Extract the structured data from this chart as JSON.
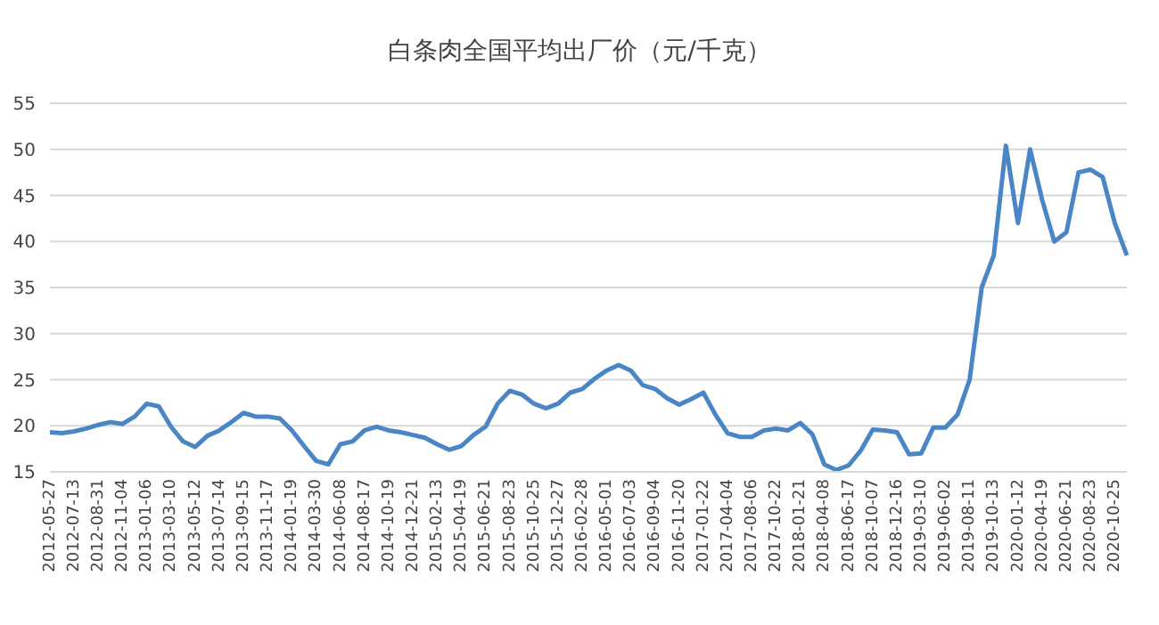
{
  "chart_data": {
    "type": "line",
    "title": "白条肉全国平均出厂价（元/千克）",
    "categories": [
      "2012-05-27",
      null,
      "2012-07-13",
      null,
      "2012-08-31",
      null,
      "2012-11-04",
      null,
      "2013-01-06",
      null,
      "2013-03-10",
      null,
      "2013-05-12",
      null,
      "2013-07-14",
      null,
      "2013-09-15",
      null,
      "2013-11-17",
      null,
      "2014-01-19",
      null,
      "2014-03-30",
      null,
      "2014-06-08",
      null,
      "2014-08-17",
      null,
      "2014-10-19",
      null,
      "2014-12-21",
      null,
      "2015-02-13",
      null,
      "2015-04-19",
      null,
      "2015-06-21",
      null,
      "2015-08-23",
      null,
      "2015-10-25",
      null,
      "2015-12-27",
      null,
      "2016-02-28",
      null,
      "2016-05-01",
      null,
      "2016-07-03",
      null,
      "2016-09-04",
      null,
      "2016-11-20",
      null,
      "2017-01-22",
      null,
      "2017-04-04",
      null,
      "2017-08-06",
      null,
      "2017-10-22",
      null,
      "2018-01-21",
      null,
      "2018-04-08",
      null,
      "2018-06-17",
      null,
      "2018-10-07",
      null,
      "2018-12-16",
      null,
      "2019-03-10",
      null,
      "2019-06-02",
      null,
      "2019-08-11",
      null,
      "2019-10-13",
      null,
      "2020-01-12",
      null,
      "2020-04-19",
      null,
      "2020-06-21",
      null,
      "2020-08-23",
      null,
      "2020-10-25",
      null
    ],
    "series": [
      {
        "color": "#4a86c5",
        "values": [
          19.3,
          19.2,
          19.4,
          19.7,
          20.1,
          20.4,
          20.2,
          21.0,
          22.4,
          22.1,
          19.9,
          18.3,
          17.7,
          18.9,
          19.5,
          20.4,
          21.4,
          21.0,
          21.0,
          20.8,
          19.5,
          17.8,
          16.2,
          15.8,
          18.0,
          18.3,
          19.5,
          19.9,
          19.5,
          19.3,
          19.0,
          18.7,
          18.0,
          17.4,
          17.8,
          19.0,
          19.9,
          22.4,
          23.8,
          23.4,
          22.4,
          21.9,
          22.4,
          23.6,
          24.0,
          25.1,
          26.0,
          26.6,
          26.0,
          24.4,
          24.0,
          23.0,
          22.3,
          22.9,
          23.6,
          21.2,
          19.2,
          18.8,
          18.8,
          19.5,
          19.7,
          19.5,
          20.3,
          19.1,
          15.8,
          15.2,
          15.7,
          17.3,
          19.6,
          19.5,
          19.3,
          16.9,
          17.0,
          19.8,
          19.8,
          21.2,
          25.0,
          35.0,
          38.5,
          50.4,
          42.0,
          50.0,
          44.5,
          40.0,
          41.0,
          47.5,
          47.8,
          47.0,
          42.0,
          38.5
        ]
      }
    ],
    "ylim": [
      15,
      55
    ],
    "yticks": [
      15,
      20,
      25,
      30,
      35,
      40,
      45,
      50,
      55
    ],
    "grid": "y",
    "marker": "none",
    "line_style": "solid"
  }
}
